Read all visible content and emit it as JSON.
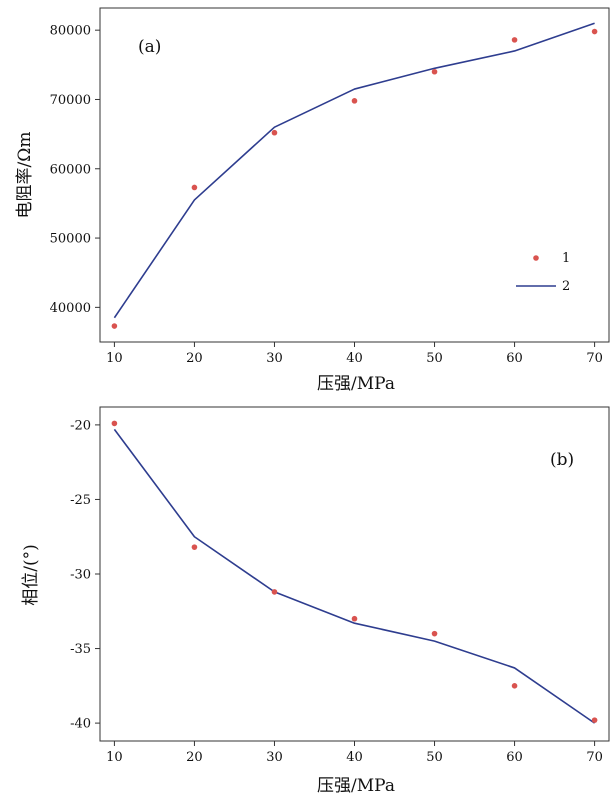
{
  "chart_data": [
    {
      "type": "scatter+line",
      "panel_label": "(a)",
      "xlabel": "压强/MPa",
      "ylabel": "电阻率/Ωm",
      "x": [
        10,
        20,
        30,
        40,
        50,
        60,
        70
      ],
      "xticks": [
        "10",
        "20",
        "30",
        "40",
        "50",
        "60",
        "70"
      ],
      "yticks": [
        "40000",
        "50000",
        "60000",
        "70000",
        "80000"
      ],
      "xlim": [
        8.2,
        71.8
      ],
      "ylim": [
        35000,
        83200
      ],
      "grid": false,
      "legend_position": "lower-right",
      "series": [
        {
          "name": "1",
          "kind": "scatter",
          "color": "#d9534f",
          "values": [
            37300,
            57300,
            65200,
            69800,
            74000,
            78600,
            79800
          ]
        },
        {
          "name": "2",
          "kind": "line",
          "color": "#2e3d8f",
          "values": [
            38500,
            55500,
            66000,
            71500,
            74500,
            77000,
            81000
          ]
        }
      ]
    },
    {
      "type": "scatter+line",
      "panel_label": "(b)",
      "xlabel": "压强/MPa",
      "ylabel": "相位/(°)",
      "x": [
        10,
        20,
        30,
        40,
        50,
        60,
        70
      ],
      "xticks": [
        "10",
        "20",
        "30",
        "40",
        "50",
        "60",
        "70"
      ],
      "yticks": [
        "-20",
        "-25",
        "-30",
        "-35",
        "-40"
      ],
      "xlim": [
        8.2,
        71.8
      ],
      "ylim": [
        -41.2,
        -18.8
      ],
      "grid": false,
      "series": [
        {
          "kind": "scatter",
          "color": "#d9534f",
          "values": [
            -19.9,
            -28.2,
            -31.2,
            -33.0,
            -34.0,
            -37.5,
            -39.8
          ]
        },
        {
          "kind": "line",
          "color": "#2e3d8f",
          "values": [
            -20.3,
            -27.5,
            -31.2,
            -33.3,
            -34.5,
            -36.3,
            -40.0
          ]
        }
      ]
    }
  ]
}
